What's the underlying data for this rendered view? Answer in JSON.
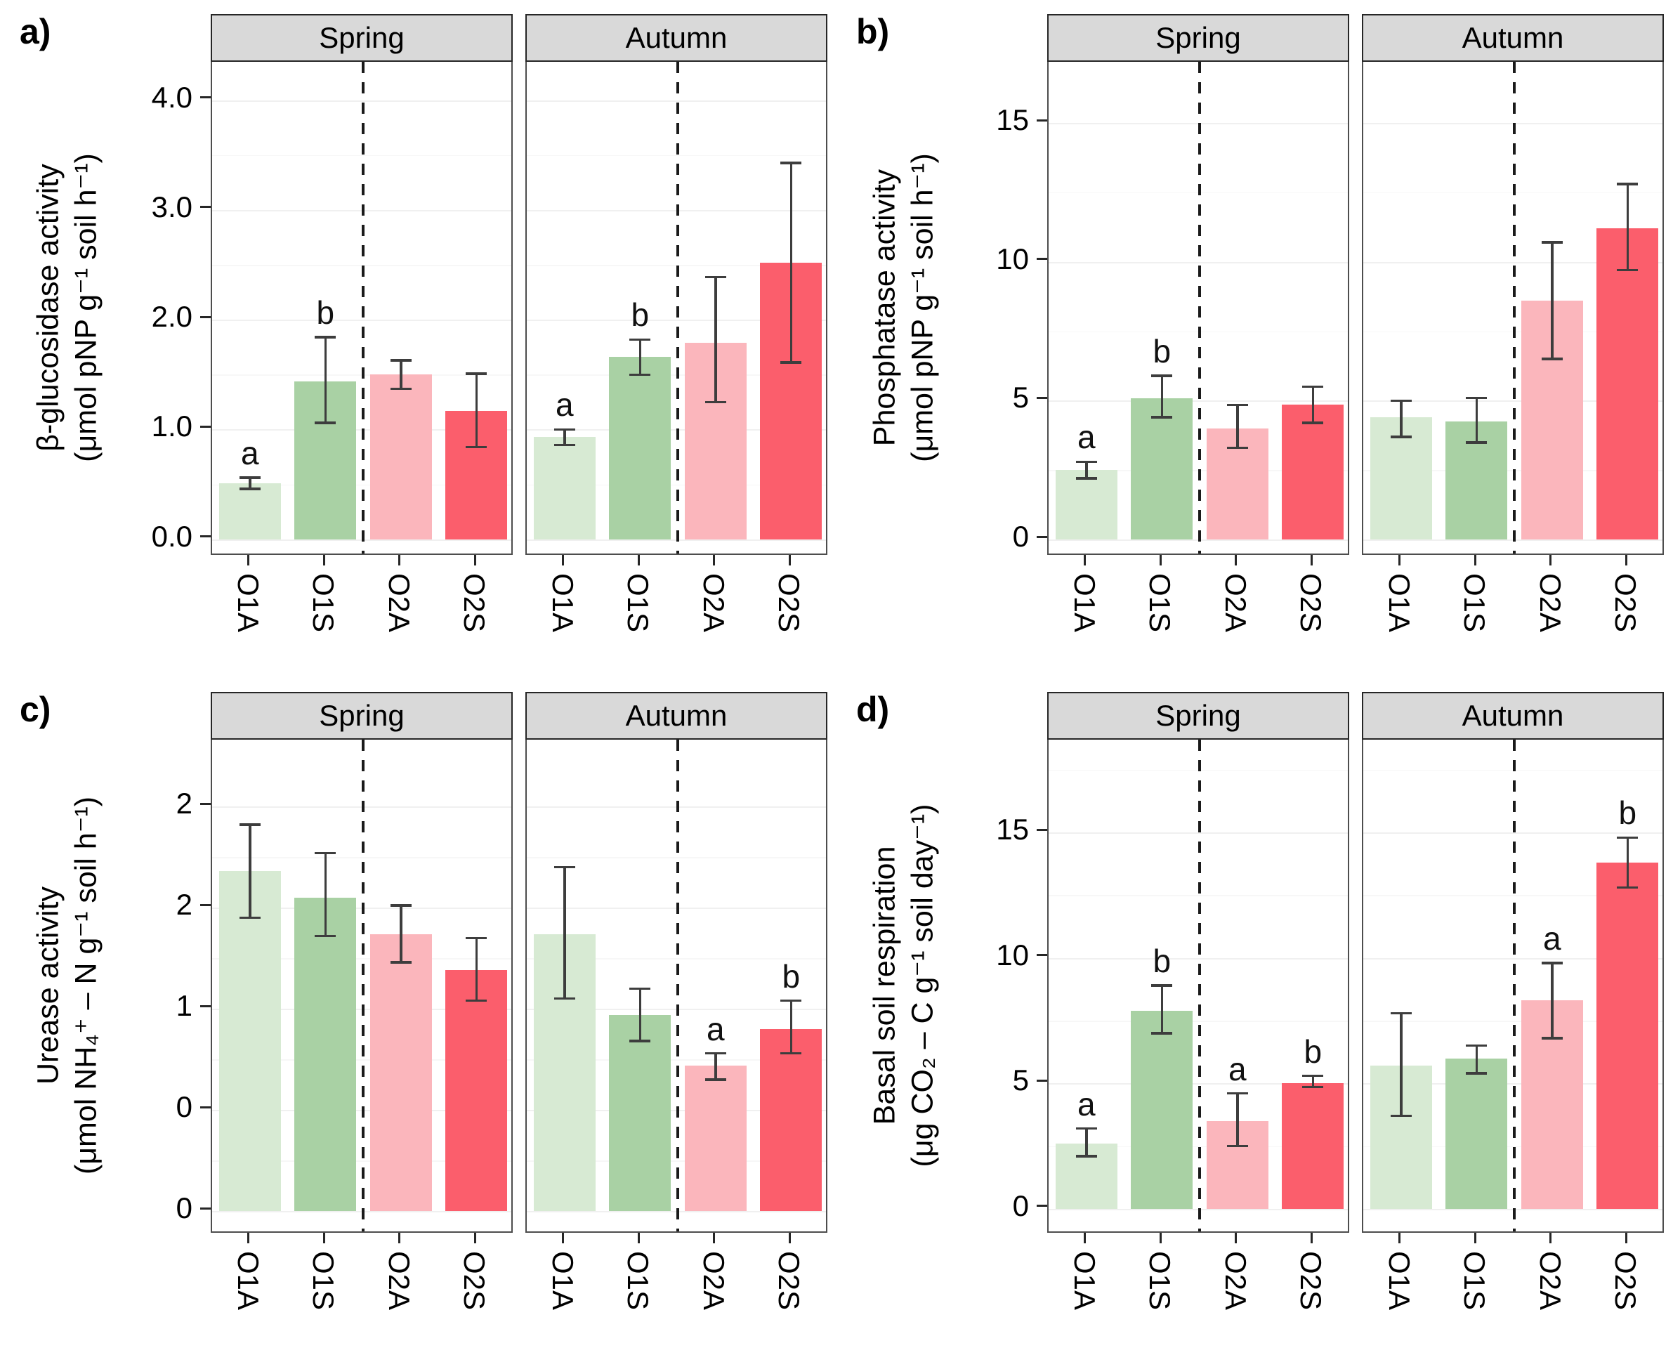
{
  "figure": {
    "background": "#ffffff",
    "strip_bg": "#d9d9d9",
    "strip_border": "#262626",
    "panel_border": "#4d4d4d",
    "error_bar_color": "#3d3d3d",
    "dashed_separator_color": "#1a1a1a",
    "facet_labels": [
      "Spring",
      "Autumn"
    ],
    "categories": [
      "O1A",
      "O1S",
      "O2A",
      "O2S"
    ],
    "bar_colors": {
      "O1A": "#d7ead3",
      "O1S": "#a9d1a4",
      "O2A": "#fbb6bc",
      "O2S": "#fb5e6c"
    },
    "grid": "faint major and minor horizontal gridlines",
    "legend_position": "none"
  },
  "chart_data": [
    {
      "panel_label": "a)",
      "type": "bar",
      "ylabel": "β-glucosidase activity",
      "ylabel_units": "(μmol pNP g⁻¹ soil h⁻¹)",
      "facets": [
        "Spring",
        "Autumn"
      ],
      "categories": [
        "O1A",
        "O1S",
        "O2A",
        "O2S"
      ],
      "ylim": [
        -0.13,
        4.35
      ],
      "y_ticks": [
        {
          "v": 0.0,
          "label": "0.0"
        },
        {
          "v": 1.0,
          "label": "1.0"
        },
        {
          "v": 2.0,
          "label": "2.0"
        },
        {
          "v": 3.0,
          "label": "3.0"
        },
        {
          "v": 4.0,
          "label": "4.0"
        }
      ],
      "y_minor": [
        0.5,
        1.5,
        2.5,
        3.5
      ],
      "series": [
        {
          "facet": "Spring",
          "values": [
            0.51,
            1.44,
            1.5,
            1.17
          ],
          "err_low": [
            0.46,
            1.06,
            1.37,
            0.84
          ],
          "err_high": [
            0.56,
            1.84,
            1.63,
            1.51
          ],
          "sig_letters": [
            "a",
            "b",
            "",
            ""
          ]
        },
        {
          "facet": "Autumn",
          "values": [
            0.93,
            1.66,
            1.79,
            2.52
          ],
          "err_low": [
            0.86,
            1.5,
            1.25,
            1.61
          ],
          "err_high": [
            1.0,
            1.82,
            2.39,
            3.43
          ],
          "sig_letters": [
            "a",
            "b",
            "",
            ""
          ]
        }
      ]
    },
    {
      "panel_label": "b)",
      "type": "bar",
      "ylabel": "Phosphatase activity",
      "ylabel_units": "(μmol pNP g⁻¹ soil h⁻¹)",
      "facets": [
        "Spring",
        "Autumn"
      ],
      "categories": [
        "O1A",
        "O1S",
        "O2A",
        "O2S"
      ],
      "ylim": [
        -0.5,
        17.2
      ],
      "y_ticks": [
        {
          "v": 0,
          "label": "0"
        },
        {
          "v": 5,
          "label": "5"
        },
        {
          "v": 10,
          "label": "10"
        },
        {
          "v": 15,
          "label": "15"
        }
      ],
      "y_minor": [
        2.5,
        7.5,
        12.5
      ],
      "series": [
        {
          "facet": "Spring",
          "values": [
            2.5,
            5.1,
            4.0,
            4.85
          ],
          "err_low": [
            2.2,
            4.4,
            3.3,
            4.2
          ],
          "err_high": [
            2.8,
            5.9,
            4.85,
            5.5
          ],
          "sig_letters": [
            "a",
            "b",
            "",
            ""
          ]
        },
        {
          "facet": "Autumn",
          "values": [
            4.4,
            4.25,
            8.6,
            11.2
          ],
          "err_low": [
            3.7,
            3.5,
            6.5,
            9.7
          ],
          "err_high": [
            5.0,
            5.1,
            10.7,
            12.8
          ],
          "sig_letters": [
            "",
            "",
            "",
            ""
          ]
        }
      ]
    },
    {
      "panel_label": "c)",
      "type": "bar",
      "ylabel": "Urease activity",
      "ylabel_units": "(μmol NH₄⁺ – N g⁻¹ soil h⁻¹)",
      "facets": [
        "Spring",
        "Autumn"
      ],
      "categories": [
        "O1A",
        "O1S",
        "O2A",
        "O2S"
      ],
      "ylim": [
        -0.1,
        2.33
      ],
      "y_ticks": [
        {
          "v": 0.0,
          "label": "0"
        },
        {
          "v": 0.5,
          "label": "0"
        },
        {
          "v": 1.0,
          "label": "1"
        },
        {
          "v": 1.5,
          "label": "2"
        },
        {
          "v": 2.0,
          "label": "2"
        }
      ],
      "y_minor": [
        0.25,
        0.75,
        1.25,
        1.75
      ],
      "series": [
        {
          "facet": "Spring",
          "values": [
            1.68,
            1.55,
            1.37,
            1.19
          ],
          "err_low": [
            1.45,
            1.36,
            1.23,
            1.04
          ],
          "err_high": [
            1.91,
            1.77,
            1.51,
            1.35
          ],
          "sig_letters": [
            "",
            "",
            "",
            ""
          ]
        },
        {
          "facet": "Autumn",
          "values": [
            1.37,
            0.97,
            0.72,
            0.9
          ],
          "err_low": [
            1.05,
            0.84,
            0.65,
            0.78
          ],
          "err_high": [
            1.7,
            1.1,
            0.78,
            1.04
          ],
          "sig_letters": [
            "",
            "",
            "a",
            "b"
          ]
        }
      ]
    },
    {
      "panel_label": "d)",
      "type": "bar",
      "ylabel": "Basal soil respiration",
      "ylabel_units": "(μg CO₂ – C g⁻¹ soil day⁻¹)",
      "facets": [
        "Spring",
        "Autumn"
      ],
      "categories": [
        "O1A",
        "O1S",
        "O2A",
        "O2S"
      ],
      "ylim": [
        -0.9,
        18.7
      ],
      "y_ticks": [
        {
          "v": 0,
          "label": "0"
        },
        {
          "v": 5,
          "label": "5"
        },
        {
          "v": 10,
          "label": "10"
        },
        {
          "v": 15,
          "label": "15"
        }
      ],
      "y_minor": [
        2.5,
        7.5,
        12.5,
        17.5
      ],
      "series": [
        {
          "facet": "Spring",
          "values": [
            2.6,
            7.9,
            3.5,
            5.0
          ],
          "err_low": [
            2.1,
            7.0,
            2.5,
            4.85
          ],
          "err_high": [
            3.2,
            8.9,
            4.6,
            5.3
          ],
          "sig_letters": [
            "a",
            "b",
            "a",
            "b"
          ]
        },
        {
          "facet": "Autumn",
          "values": [
            5.7,
            6.0,
            8.3,
            13.8
          ],
          "err_low": [
            3.7,
            5.4,
            6.8,
            12.8
          ],
          "err_high": [
            7.8,
            6.5,
            9.8,
            14.8
          ],
          "sig_letters": [
            "",
            "",
            "a",
            "b"
          ]
        }
      ]
    }
  ]
}
